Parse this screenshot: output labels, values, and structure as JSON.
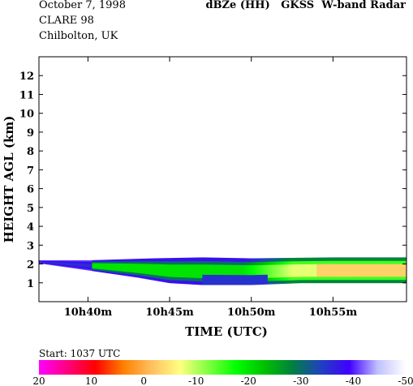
{
  "header": {
    "line1": "October  7, 1998",
    "line2": "CLARE 98",
    "line3": "Chilbolton, UK",
    "title": "dBZe (HH)   GKSS  W-band Radar"
  },
  "chart_data": {
    "type": "heatmap",
    "title": "dBZe (HH)   GKSS  W-band Radar",
    "xlabel": "TIME (UTC)",
    "ylabel": "HEIGHT AGL (km)",
    "x_unit": "minutes after 10h37m",
    "xlim": [
      0,
      22.5
    ],
    "ylim": [
      0,
      13
    ],
    "xticks": [
      {
        "value": 3,
        "label": "10h40m"
      },
      {
        "value": 8,
        "label": "10h45m"
      },
      {
        "value": 13,
        "label": "10h50m"
      },
      {
        "value": 18,
        "label": "10h55m"
      }
    ],
    "yticks": [
      1,
      2,
      3,
      4,
      5,
      6,
      7,
      8,
      9,
      10,
      11,
      12
    ],
    "colorbar": {
      "stops": [
        "#ff00ff",
        "#ff0080",
        "#ff0000",
        "#ff8000",
        "#ffc060",
        "#ffff80",
        "#80ff40",
        "#00ff00",
        "#00c000",
        "#008040",
        "#2040c0",
        "#4000ff",
        "#c0c0ff",
        "#ffffff"
      ],
      "range": [
        20,
        -50
      ],
      "tick_values": [
        20,
        10,
        0,
        -10,
        -20,
        -30,
        -40,
        -50
      ],
      "tick_labels": [
        "20",
        "10",
        "0",
        "-10",
        "-20",
        "-30",
        "-40",
        "-50"
      ]
    },
    "layer_top_km": [
      {
        "t": 0,
        "h": 2.2
      },
      {
        "t": 3.2,
        "h": 2.2
      },
      {
        "t": 7,
        "h": 2.3
      },
      {
        "t": 10,
        "h": 2.35
      },
      {
        "t": 13,
        "h": 2.3
      },
      {
        "t": 18,
        "h": 2.35
      },
      {
        "t": 22.5,
        "h": 2.35
      }
    ],
    "layer_bottom_km": [
      {
        "t": 0,
        "h": 2.05
      },
      {
        "t": 2,
        "h": 1.8
      },
      {
        "t": 4,
        "h": 1.55
      },
      {
        "t": 6,
        "h": 1.3
      },
      {
        "t": 8,
        "h": 1.0
      },
      {
        "t": 10,
        "h": 0.9
      },
      {
        "t": 13,
        "h": 0.9
      },
      {
        "t": 16,
        "h": 1.0
      },
      {
        "t": 22.5,
        "h": 1.0
      }
    ],
    "regions": [
      {
        "name": "core-lime",
        "t0": 3.2,
        "t1": 14,
        "value": -20
      },
      {
        "name": "core-yellow",
        "t0": 12.5,
        "t1": 22.5,
        "value": -8
      },
      {
        "name": "core-orange",
        "t0": 17,
        "t1": 22.5,
        "value": -3
      }
    ]
  },
  "footer": {
    "start": "Start: 1037 UTC"
  }
}
